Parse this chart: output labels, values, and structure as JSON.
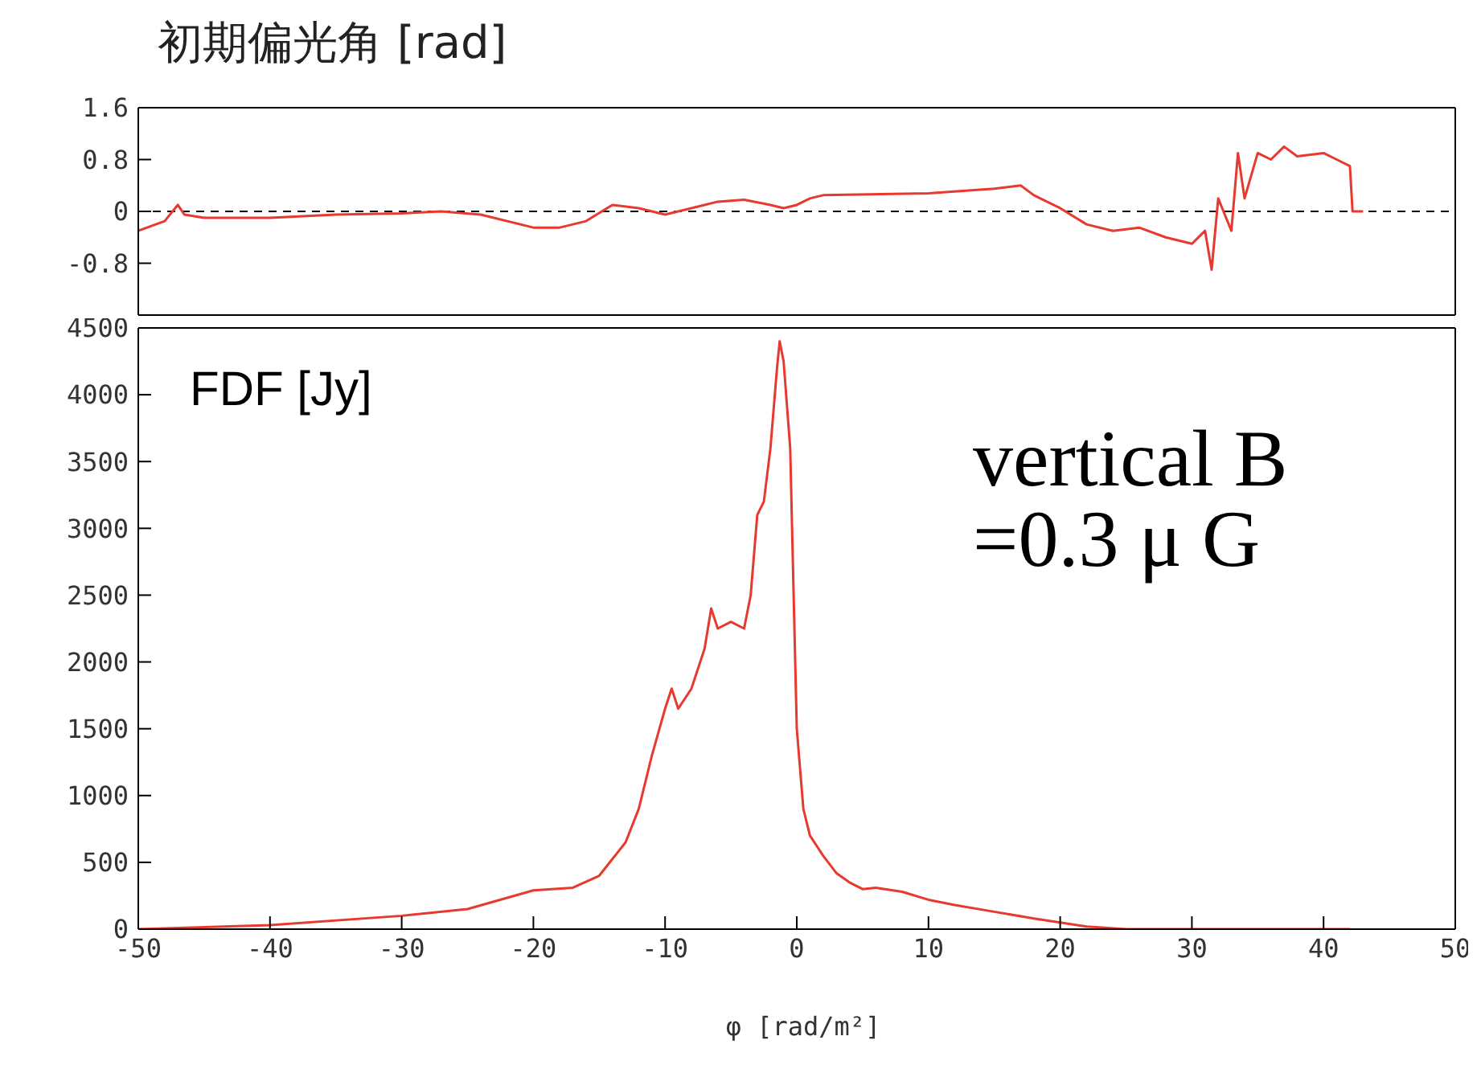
{
  "chart_data": [
    {
      "type": "line",
      "title": "初期偏光角 [rad]",
      "xlim": [
        -50,
        50
      ],
      "xticks": [
        -50,
        -40,
        -30,
        -20,
        -10,
        0,
        10,
        20,
        30,
        40,
        50
      ],
      "ylim": [
        -1.6,
        1.6
      ],
      "yticks": [
        -0.8,
        0,
        0.8,
        1.6
      ],
      "tick_labels": "y",
      "marker": "none",
      "line_style": "solid",
      "ref_lines": [
        {
          "axis": "y",
          "value": 0,
          "color": "#000000",
          "line_style": "dashed"
        }
      ],
      "series": [
        {
          "color": "#e8392f",
          "x": [
            -50,
            -48,
            -47,
            -46.5,
            -45,
            -40,
            -35,
            -30,
            -27,
            -24,
            -20,
            -18,
            -16,
            -14,
            -12,
            -10,
            -8,
            -6,
            -4,
            -2,
            -1,
            0,
            1,
            2,
            10,
            15,
            17,
            18,
            20,
            22,
            24,
            26,
            28,
            30,
            31,
            31.5,
            32,
            33,
            33.5,
            34,
            35,
            36,
            37,
            38,
            40,
            41,
            42,
            42.2,
            43
          ],
          "values": [
            -0.3,
            -0.15,
            0.1,
            -0.05,
            -0.1,
            -0.1,
            -0.05,
            -0.03,
            0,
            -0.05,
            -0.25,
            -0.25,
            -0.15,
            0.1,
            0.05,
            -0.05,
            0.05,
            0.15,
            0.18,
            0.1,
            0.05,
            0.1,
            0.2,
            0.25,
            0.28,
            0.35,
            0.4,
            0.25,
            0.05,
            -0.2,
            -0.3,
            -0.25,
            -0.4,
            -0.5,
            -0.3,
            -0.9,
            0.2,
            -0.3,
            0.9,
            0.2,
            0.9,
            0.8,
            1.0,
            0.85,
            0.9,
            0.8,
            0.7,
            0,
            0
          ]
        }
      ]
    },
    {
      "type": "line",
      "xlabel": "φ [rad/m²]",
      "xlim": [
        -50,
        50
      ],
      "xticks": [
        -50,
        -40,
        -30,
        -20,
        -10,
        0,
        10,
        20,
        30,
        40,
        50
      ],
      "ylim": [
        0,
        4500
      ],
      "yticks": [
        0,
        500,
        1000,
        1500,
        2000,
        2500,
        3000,
        3500,
        4000,
        4500
      ],
      "marker": "none",
      "line_style": "solid",
      "annotations": [
        "FDF [Jy]",
        "vertical B",
        "=0.3 μ G"
      ],
      "series": [
        {
          "color": "#e8392f",
          "x": [
            -50,
            -40,
            -30,
            -25,
            -20,
            -17,
            -15,
            -13,
            -12,
            -11,
            -10,
            -9.5,
            -9,
            -8,
            -7,
            -6.5,
            -6,
            -5,
            -4,
            -3.5,
            -3,
            -2.5,
            -2,
            -1.5,
            -1.3,
            -1,
            -0.5,
            0,
            0.5,
            1,
            2,
            3,
            4,
            5,
            6,
            8,
            10,
            12,
            15,
            18,
            20,
            22,
            25,
            30,
            42
          ],
          "values": [
            0,
            30,
            100,
            150,
            290,
            310,
            400,
            650,
            900,
            1300,
            1650,
            1800,
            1650,
            1800,
            2100,
            2400,
            2250,
            2300,
            2250,
            2500,
            3100,
            3200,
            3600,
            4200,
            4400,
            4250,
            3600,
            1500,
            900,
            700,
            550,
            420,
            350,
            300,
            310,
            280,
            220,
            180,
            130,
            80,
            50,
            20,
            0,
            0,
            0
          ]
        }
      ]
    }
  ]
}
